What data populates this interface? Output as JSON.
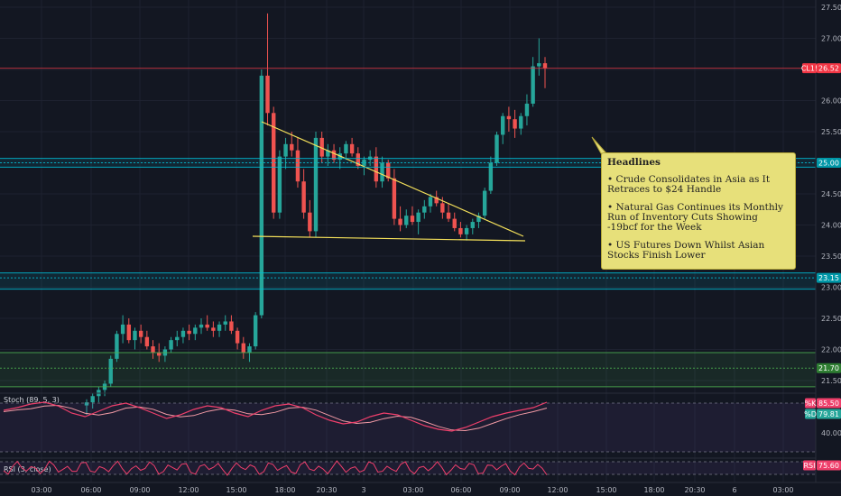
{
  "colors": {
    "background": "#131722",
    "up": "#26a69a",
    "down": "#ef5350",
    "trendline": "#f5e15a",
    "level_teal": "#00bcd4",
    "level_green": "#4caf50",
    "price_red": "#f23645",
    "stoch_k": "#ef3f6b",
    "stoch_d": "#f29aa5",
    "rsi": "#ef3f6b"
  },
  "chart_data": {
    "type": "candlestick",
    "symbol_tag": "CL1!",
    "last_price": "26.52",
    "y_ticks": [
      "27.50",
      "27.00",
      "26.50",
      "26.00",
      "25.50",
      "25.00",
      "24.50",
      "24.00",
      "23.50",
      "23.00",
      "22.50",
      "22.00",
      "21.50"
    ],
    "x_ticks": [
      "03:00",
      "06:00",
      "09:00",
      "12:00",
      "15:00",
      "18:00",
      "20:30",
      "3",
      "03:00",
      "06:00",
      "09:00",
      "12:00",
      "15:00",
      "18:00",
      "20:30",
      "6",
      "03:00"
    ],
    "levels": [
      {
        "price": 25.0,
        "label": "25.00",
        "style": "teal"
      },
      {
        "price": 23.15,
        "label": "23.15",
        "style": "teal"
      },
      {
        "price": 21.7,
        "label": "21.70",
        "style": "green"
      }
    ],
    "candles": [
      [
        21.1,
        21.2,
        20.95,
        21.15
      ],
      [
        21.15,
        21.3,
        21.05,
        21.25
      ],
      [
        21.25,
        21.4,
        21.15,
        21.35
      ],
      [
        21.35,
        21.5,
        21.25,
        21.45
      ],
      [
        21.45,
        21.9,
        21.4,
        21.85
      ],
      [
        21.85,
        22.3,
        21.8,
        22.25
      ],
      [
        22.25,
        22.55,
        22.1,
        22.4
      ],
      [
        22.4,
        22.5,
        22.1,
        22.15
      ],
      [
        22.15,
        22.35,
        22.0,
        22.3
      ],
      [
        22.3,
        22.4,
        22.1,
        22.2
      ],
      [
        22.2,
        22.3,
        22.0,
        22.05
      ],
      [
        22.05,
        22.15,
        21.85,
        21.95
      ],
      [
        21.95,
        22.1,
        21.8,
        21.9
      ],
      [
        21.9,
        22.05,
        21.8,
        22.0
      ],
      [
        22.0,
        22.2,
        21.95,
        22.15
      ],
      [
        22.15,
        22.3,
        22.05,
        22.2
      ],
      [
        22.2,
        22.35,
        22.1,
        22.3
      ],
      [
        22.3,
        22.4,
        22.15,
        22.25
      ],
      [
        22.25,
        22.4,
        22.15,
        22.35
      ],
      [
        22.35,
        22.5,
        22.25,
        22.4
      ],
      [
        22.4,
        22.55,
        22.3,
        22.35
      ],
      [
        22.35,
        22.45,
        22.2,
        22.3
      ],
      [
        22.3,
        22.45,
        22.2,
        22.4
      ],
      [
        22.4,
        22.55,
        22.3,
        22.45
      ],
      [
        22.45,
        22.55,
        22.25,
        22.3
      ],
      [
        22.3,
        22.35,
        22.0,
        22.1
      ],
      [
        22.1,
        22.2,
        21.85,
        21.95
      ],
      [
        21.95,
        22.1,
        21.8,
        22.05
      ],
      [
        22.05,
        22.6,
        22.0,
        22.55
      ],
      [
        22.55,
        26.5,
        22.5,
        26.4
      ],
      [
        26.4,
        27.4,
        25.6,
        25.8
      ],
      [
        25.8,
        25.9,
        24.1,
        24.2
      ],
      [
        24.2,
        25.2,
        24.1,
        25.1
      ],
      [
        25.1,
        25.4,
        24.9,
        25.3
      ],
      [
        25.3,
        25.5,
        25.1,
        25.2
      ],
      [
        25.2,
        25.4,
        24.6,
        24.7
      ],
      [
        24.7,
        24.9,
        24.1,
        24.2
      ],
      [
        24.2,
        24.4,
        23.8,
        23.9
      ],
      [
        23.9,
        25.5,
        23.8,
        25.4
      ],
      [
        25.4,
        25.5,
        25.0,
        25.1
      ],
      [
        25.1,
        25.3,
        24.95,
        25.2
      ],
      [
        25.2,
        25.3,
        25.0,
        25.05
      ],
      [
        25.05,
        25.25,
        24.9,
        25.15
      ],
      [
        25.15,
        25.35,
        25.05,
        25.3
      ],
      [
        25.3,
        25.4,
        25.1,
        25.15
      ],
      [
        25.15,
        25.25,
        24.9,
        24.95
      ],
      [
        24.95,
        25.1,
        24.8,
        25.05
      ],
      [
        25.05,
        25.2,
        24.95,
        25.1
      ],
      [
        25.1,
        25.25,
        24.6,
        24.7
      ],
      [
        24.7,
        25.1,
        24.6,
        25.0
      ],
      [
        25.0,
        25.05,
        24.7,
        24.75
      ],
      [
        24.75,
        24.9,
        24.0,
        24.1
      ],
      [
        24.1,
        24.3,
        23.9,
        24.0
      ],
      [
        24.0,
        24.25,
        23.95,
        24.15
      ],
      [
        24.15,
        24.3,
        24.0,
        24.05
      ],
      [
        24.05,
        24.25,
        23.85,
        24.2
      ],
      [
        24.2,
        24.4,
        24.1,
        24.3
      ],
      [
        24.3,
        24.5,
        24.2,
        24.45
      ],
      [
        24.45,
        24.55,
        24.3,
        24.35
      ],
      [
        24.35,
        24.45,
        24.1,
        24.2
      ],
      [
        24.2,
        24.35,
        24.05,
        24.1
      ],
      [
        24.1,
        24.2,
        23.9,
        23.95
      ],
      [
        23.95,
        24.05,
        23.8,
        23.85
      ],
      [
        23.85,
        24.0,
        23.75,
        23.95
      ],
      [
        23.95,
        24.1,
        23.85,
        24.05
      ],
      [
        24.05,
        24.2,
        23.95,
        24.15
      ],
      [
        24.15,
        24.6,
        24.1,
        24.55
      ],
      [
        24.55,
        25.1,
        24.5,
        25.0
      ],
      [
        25.0,
        25.5,
        24.95,
        25.45
      ],
      [
        25.45,
        25.8,
        25.3,
        25.75
      ],
      [
        25.75,
        25.9,
        25.5,
        25.7
      ],
      [
        25.7,
        25.85,
        25.4,
        25.55
      ],
      [
        25.55,
        25.8,
        25.45,
        25.75
      ],
      [
        25.75,
        26.1,
        25.6,
        25.95
      ],
      [
        25.95,
        26.7,
        25.9,
        26.55
      ],
      [
        26.55,
        27.0,
        26.4,
        26.6
      ],
      [
        26.6,
        26.7,
        26.2,
        26.52
      ]
    ],
    "triangle": {
      "upper": [
        [
          290,
          135
        ],
        [
          580,
          262
        ]
      ],
      "lower": [
        [
          280,
          262
        ],
        [
          582,
          267
        ]
      ]
    },
    "stochastic": {
      "title": "Stoch (89, 5, 3)",
      "k_label": "%K",
      "k_value": "85.50",
      "d_label": "%D",
      "d_value": "79.81",
      "axis_label": "40.00"
    },
    "rsi": {
      "title": "RSI (3, close)",
      "label": "RSI",
      "value": "75.60"
    }
  },
  "news": {
    "header": "Headlines",
    "items": [
      "• Crude Consolidates in Asia as It Retraces to $24 Handle",
      "• Natural Gas Continues its Monthly Run of Inventory Cuts Showing -19bcf for the Week",
      "• US Futures Down Whilst Asian Stocks Finish Lower"
    ]
  }
}
